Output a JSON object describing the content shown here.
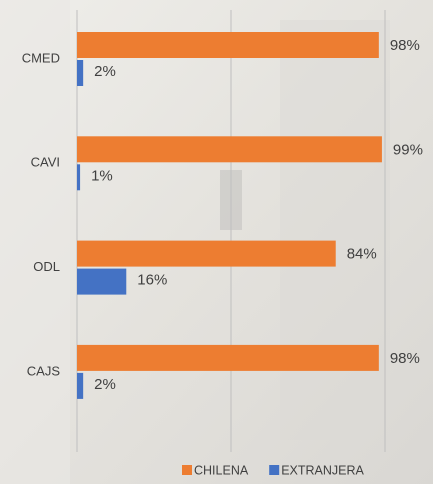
{
  "chart_data": {
    "type": "bar",
    "orientation": "horizontal",
    "categories": [
      "CMED",
      "CAVI",
      "ODL",
      "CAJS"
    ],
    "series": [
      {
        "name": "CHILENA",
        "color": "#ed7d31",
        "values": [
          98,
          99,
          84,
          98
        ],
        "value_labels": [
          "98%",
          "99%",
          "84%",
          "98%"
        ]
      },
      {
        "name": "EXTRANJERA",
        "color": "#4472c4",
        "values": [
          2,
          1,
          16,
          2
        ],
        "value_labels": [
          "2%",
          "1%",
          "16%",
          "2%"
        ]
      }
    ],
    "xlim": [
      0,
      100
    ],
    "xticks": [
      0,
      50,
      100
    ],
    "grid": true,
    "legend": "bottom"
  }
}
